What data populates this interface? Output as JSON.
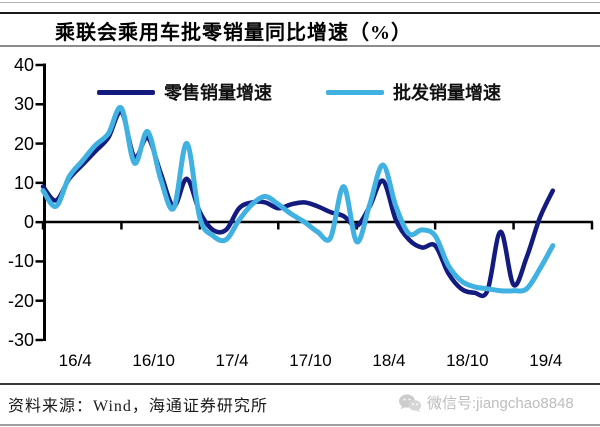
{
  "title": "乘联会乘用车批零销量同比增速（%）",
  "legend": [
    {
      "label": "零售销量增速",
      "color": "#141b7f"
    },
    {
      "label": "批发销量增速",
      "color": "#41b1e1"
    }
  ],
  "footer": {
    "source": "资料来源：Wind，海通证券研究所",
    "watermark": "微信号:jiangchao8848",
    "watermark_icon": "wechat-icon"
  },
  "colors": {
    "retail_line": "#141b7f",
    "wholesale_line": "#41b1e1",
    "axis": "#000000",
    "watermark_gray": "#bdbdbd"
  },
  "chart_data": {
    "type": "line",
    "title": "乘联会乘用车批零销量同比增速（%）",
    "xlabel": "",
    "ylabel": "",
    "ylim": [
      -30,
      40
    ],
    "y_ticks": [
      40,
      30,
      20,
      10,
      0,
      -10,
      -20,
      -30
    ],
    "x_tick_labels": [
      "16/4",
      "16/10",
      "17/4",
      "17/10",
      "18/4",
      "18/10",
      "19/4"
    ],
    "grid": false,
    "legend_position": "top",
    "x": [
      "16/1",
      "16/2",
      "16/3",
      "16/4",
      "16/5",
      "16/6",
      "16/7",
      "16/8",
      "16/9",
      "16/10",
      "16/11",
      "16/12",
      "17/1",
      "17/2",
      "17/3",
      "17/4",
      "17/5",
      "17/6",
      "17/7",
      "17/8",
      "17/9",
      "17/10",
      "17/11",
      "17/12",
      "18/1",
      "18/2",
      "18/3",
      "18/4",
      "18/5",
      "18/6",
      "18/7",
      "18/8",
      "18/9",
      "18/10",
      "18/11",
      "18/12",
      "19/1",
      "19/2",
      "19/3",
      "19/4"
    ],
    "series": [
      {
        "name": "零售销量增速",
        "color": "#141b7f",
        "values": [
          9,
          5.5,
          11,
          14.5,
          18,
          21.5,
          28,
          16.5,
          21.5,
          12.5,
          4,
          11,
          2.5,
          -2,
          -2,
          3.5,
          5,
          5,
          3.5,
          4.5,
          5,
          4,
          2.5,
          1.5,
          -1,
          4,
          10.5,
          0.5,
          -4.5,
          -6.5,
          -6,
          -13,
          -17,
          -18,
          -17.5,
          -2.5,
          -16,
          -9,
          1,
          8
        ]
      },
      {
        "name": "批发销量增速",
        "color": "#41b1e1",
        "values": [
          8,
          4,
          11.5,
          15.5,
          19.5,
          22.5,
          29,
          15,
          23,
          11,
          3.5,
          20,
          1,
          -3.5,
          -4.5,
          0.5,
          4.5,
          6.5,
          4.5,
          2,
          0,
          -2.5,
          -4,
          9,
          -5,
          4.5,
          14.5,
          4,
          -3,
          -2,
          -3.5,
          -11,
          -15,
          -16.5,
          -17,
          -17.5,
          -17.5,
          -17,
          -12,
          -6
        ]
      }
    ]
  }
}
